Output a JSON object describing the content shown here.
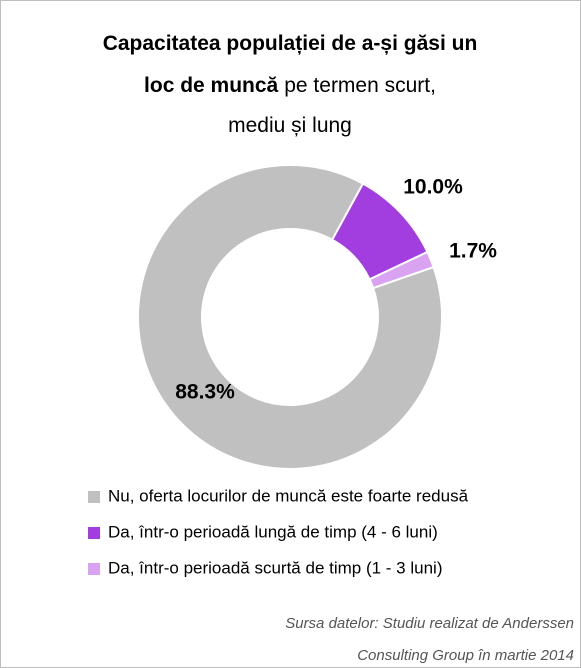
{
  "chart_data": {
    "type": "donut",
    "title": [
      [
        {
          "text": "Capacitatea populației de a-și găsi un",
          "bold": true
        }
      ],
      [
        {
          "text": "loc de muncă",
          "bold": true
        },
        {
          "text": "pe termen scurt,",
          "bold": false
        }
      ],
      [
        {
          "text": "mediu și lung",
          "bold": false
        }
      ]
    ],
    "categories": [
      "Nu, oferta locurilor de muncă este foarte redusă",
      "Da, într-o perioadă lungă de timp (4 - 6 luni)",
      "Da, într-o perioadă scurtă de timp (1 - 3 luni)"
    ],
    "values": [
      88.3,
      10.0,
      1.7
    ],
    "value_labels": [
      "88.3%",
      "10.0%",
      "1.7%"
    ],
    "colors": [
      "#c0c0c0",
      "#a23ee0",
      "#d9a3f2"
    ],
    "source": [
      "Sursa datelor: Studiu realizat de Anderssen",
      "Consulting Group în martie 2014"
    ]
  }
}
